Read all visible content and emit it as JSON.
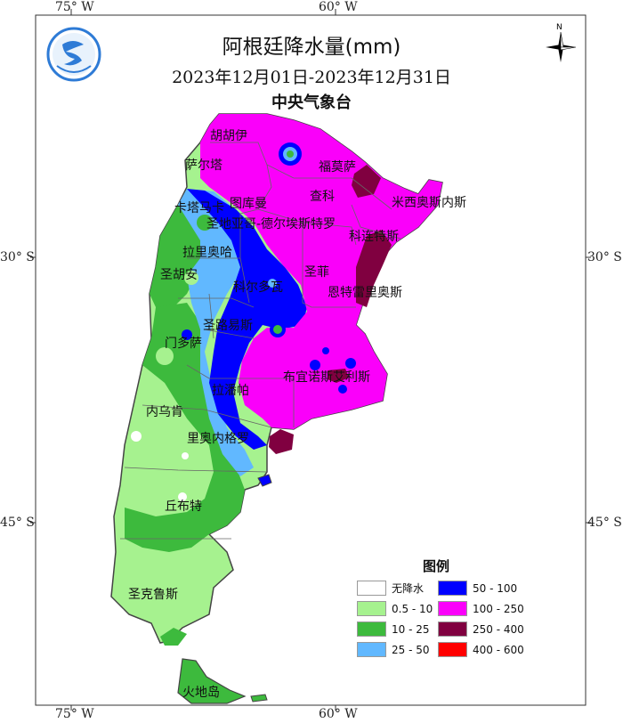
{
  "title": "阿根廷降水量(mm)",
  "date_range": "2023年12月01日-2023年12月31日",
  "agency": "中央气象台",
  "axes": {
    "top_ticks": [
      "75° W",
      "60° W"
    ],
    "bottom_ticks": [
      "75° W",
      "60° W"
    ],
    "left_ticks": [
      "30° S",
      "45° S"
    ],
    "right_ticks": [
      "30° S",
      "45° S"
    ]
  },
  "compass": {
    "letter": "N"
  },
  "legend": {
    "title": "图例",
    "items": [
      {
        "label": "无降水",
        "color": "#ffffff"
      },
      {
        "label": "0.5 - 10",
        "color": "#a6f28f"
      },
      {
        "label": "10 - 25",
        "color": "#3dba3d"
      },
      {
        "label": "25 - 50",
        "color": "#61b8ff"
      },
      {
        "label": "50 - 100",
        "color": "#0000ff"
      },
      {
        "label": "100 - 250",
        "color": "#fa00fa"
      },
      {
        "label": "250 - 400",
        "color": "#800040"
      },
      {
        "label": "400 - 600",
        "color": "#ff0000"
      }
    ]
  },
  "provinces": [
    "胡胡伊",
    "萨尔塔",
    "福莫萨",
    "查科",
    "米西奥斯内斯",
    "卡塔马卡",
    "图库曼",
    "圣地亚哥-德尔埃斯特罗",
    "科连特斯",
    "拉里奥哈",
    "圣菲",
    "圣胡安",
    "科尔多瓦",
    "恩特雷里奥斯",
    "圣路易斯",
    "门多萨",
    "布宜诺斯艾利斯",
    "拉潘帕",
    "内乌肯",
    "里奥内格罗",
    "丘布特",
    "圣克鲁斯",
    "火地岛"
  ]
}
